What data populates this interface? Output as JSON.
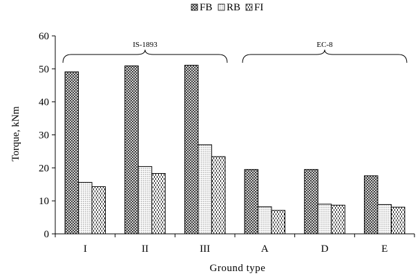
{
  "chart_data": {
    "type": "bar",
    "title": "",
    "xlabel": "Ground type",
    "ylabel": "Torque, kNm",
    "categories": [
      "I",
      "II",
      "III",
      "A",
      "D",
      "E"
    ],
    "ylim": [
      0,
      60
    ],
    "yticks": [
      0,
      10,
      20,
      30,
      40,
      50,
      60
    ],
    "grid": false,
    "legend_position": "top",
    "series": [
      {
        "name": "FB",
        "pattern": "crosshatch",
        "values": [
          49.1,
          50.9,
          51.1,
          19.5,
          19.5,
          17.6
        ]
      },
      {
        "name": "RB",
        "pattern": "dots",
        "values": [
          15.6,
          20.4,
          27.0,
          8.2,
          9.0,
          8.9
        ]
      },
      {
        "name": "FI",
        "pattern": "dashes",
        "values": [
          14.3,
          18.3,
          23.4,
          7.1,
          8.7,
          8.1
        ]
      }
    ],
    "annotations": [
      {
        "text": "IS-1893",
        "categories": [
          "I",
          "II",
          "III"
        ]
      },
      {
        "text": "EC-8",
        "categories": [
          "A",
          "D",
          "E"
        ]
      }
    ]
  }
}
